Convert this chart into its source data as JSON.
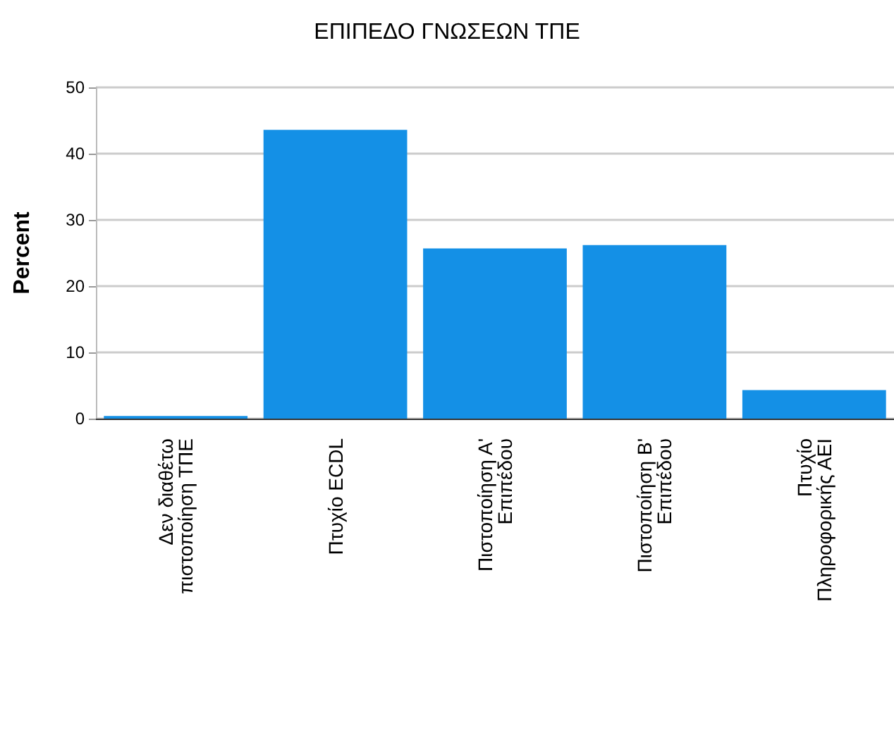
{
  "chart_data": {
    "type": "bar",
    "title": "ΕΠΙΠΕΔΟ ΓΝΩΣΕΩΝ ΤΠΕ",
    "ylabel": "Percent",
    "categories": [
      "Δεν διαθέτω\nπιστοποίηση ΤΠΕ",
      "Πτυχίο ECDL",
      "Πιστοποίηση Α'\nΕπιπέδου",
      "Πιστοποίηση Β'\nΕπιπέδου",
      "Πτυχίο\nΠληροφορικής ΑΕΙ"
    ],
    "values": [
      0.4,
      43.6,
      25.7,
      26.2,
      4.3
    ],
    "color": "#1490e6",
    "ylim": [
      0,
      50
    ],
    "yticks": [
      0,
      10,
      20,
      30,
      40,
      50
    ],
    "grid": "y"
  }
}
